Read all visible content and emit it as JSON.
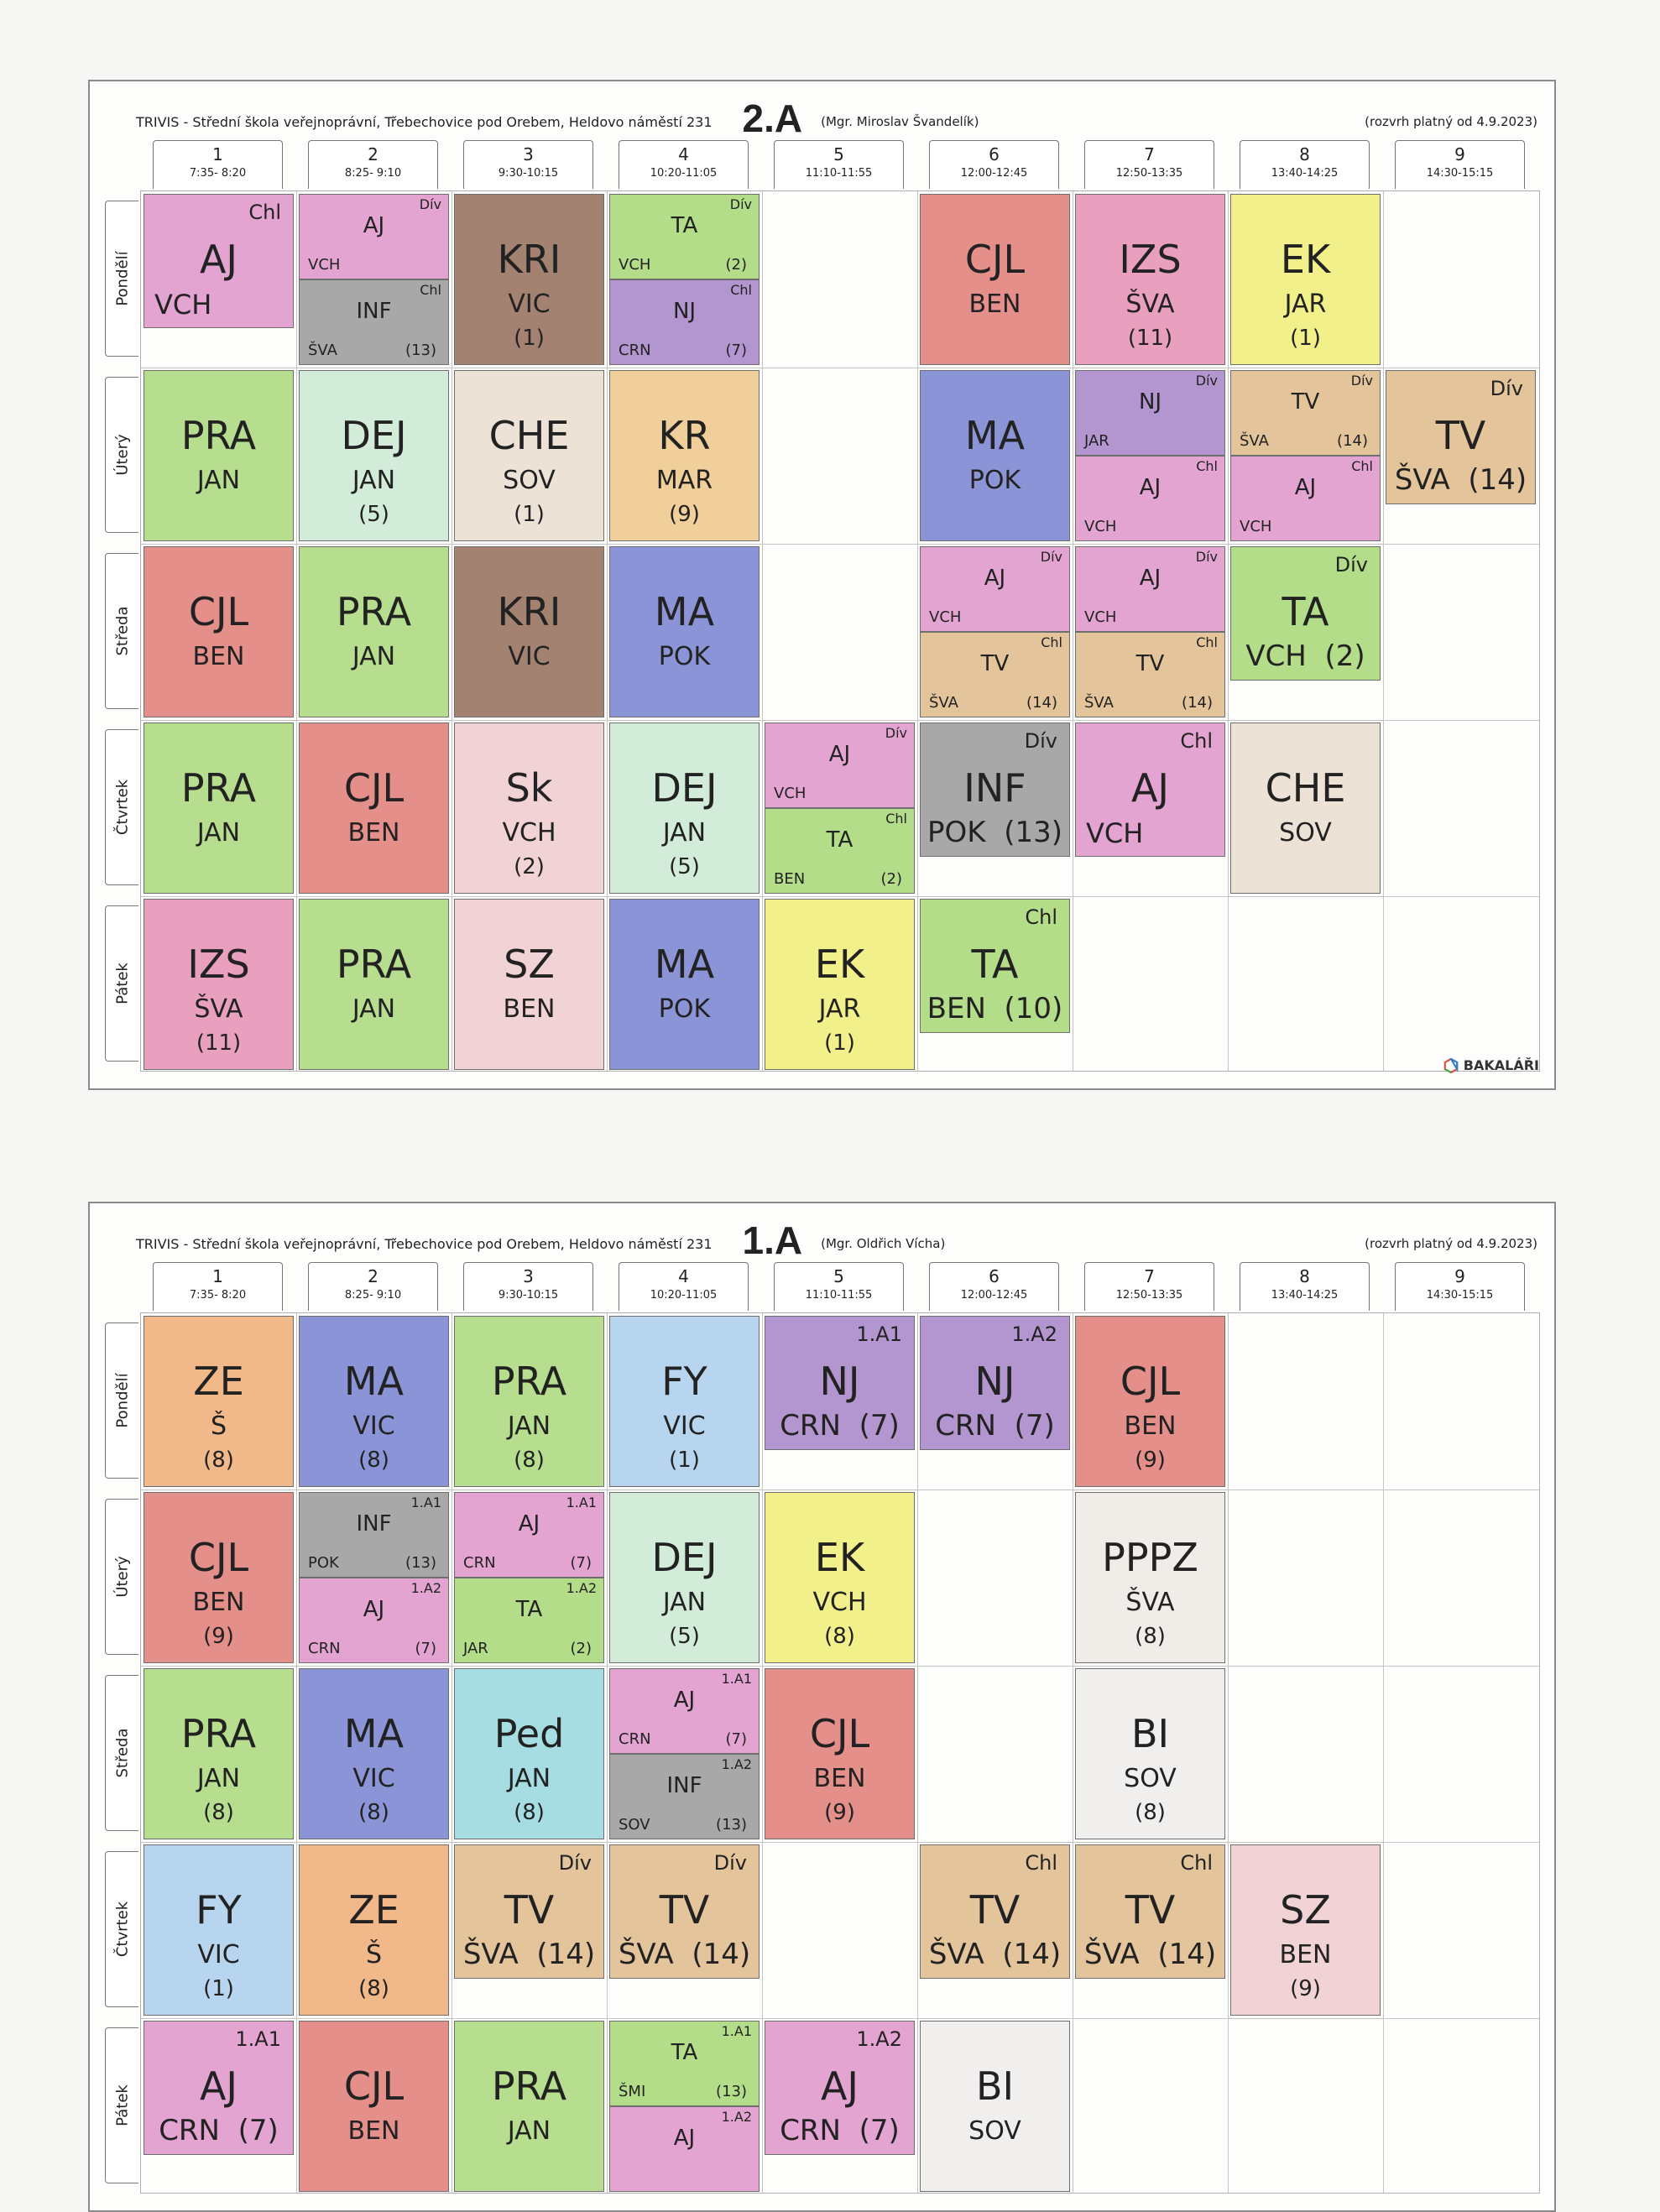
{
  "days": [
    "Pondělí",
    "Úterý",
    "Středa",
    "Čtvrtek",
    "Pátek"
  ],
  "periods": [
    {
      "n": "1",
      "t": "7:35- 8:20"
    },
    {
      "n": "2",
      "t": "8:25- 9:10"
    },
    {
      "n": "3",
      "t": "9:30-10:15"
    },
    {
      "n": "4",
      "t": "10:20-11:05"
    },
    {
      "n": "5",
      "t": "11:10-11:55"
    },
    {
      "n": "6",
      "t": "12:00-12:45"
    },
    {
      "n": "7",
      "t": "12:50-13:35"
    },
    {
      "n": "8",
      "t": "13:40-14:25"
    },
    {
      "n": "9",
      "t": "14:30-15:15"
    }
  ],
  "timetables": [
    {
      "school": "TRIVIS - Střední škola veřejnoprávní, Třebechovice pod Orebem, Heldovo náměstí 231",
      "klass": "2.A",
      "teacher": "(Mgr. Miroslav Švandelík)",
      "valid": "(rozvrh platný od 4.9.2023)",
      "logo": "BAKALÁŘI",
      "lessons": [
        {
          "d": 0,
          "p": 0,
          "slot": "full",
          "s": "AJ",
          "t": "VCH",
          "g": "Chl",
          "c": "#e4a4d2",
          "mode": "wide",
          "lower": "short"
        },
        {
          "d": 0,
          "p": 1,
          "slot": "top",
          "s": "AJ",
          "t": "VCH",
          "g": "Dív",
          "c": "#e4a4d2"
        },
        {
          "d": 0,
          "p": 1,
          "slot": "bot",
          "s": "INF",
          "t": "ŠVA",
          "r": "(13)",
          "g": "Chl",
          "c": "#a8a8a8"
        },
        {
          "d": 0,
          "p": 2,
          "slot": "full",
          "s": "KRI",
          "t": "VIC",
          "r": "(1)",
          "c": "#a38272"
        },
        {
          "d": 0,
          "p": 3,
          "slot": "top",
          "s": "TA",
          "t": "VCH",
          "r": "(2)",
          "g": "Dív",
          "c": "#b4dd8a"
        },
        {
          "d": 0,
          "p": 3,
          "slot": "bot",
          "s": "NJ",
          "t": "CRN",
          "r": "(7)",
          "g": "Chl",
          "c": "#b395cf"
        },
        {
          "d": 0,
          "p": 5,
          "slot": "full",
          "s": "CJL",
          "t": "BEN",
          "c": "#e58f8a"
        },
        {
          "d": 0,
          "p": 6,
          "slot": "full",
          "s": "IZS",
          "t": "ŠVA",
          "r": "(11)",
          "c": "#e9a0bf"
        },
        {
          "d": 0,
          "p": 7,
          "slot": "full",
          "s": "EK",
          "t": "JAR",
          "r": "(1)",
          "c": "#f1f08a"
        },
        {
          "d": 1,
          "p": 0,
          "slot": "full",
          "s": "PRA",
          "t": "JAN",
          "c": "#b7dd8f"
        },
        {
          "d": 1,
          "p": 1,
          "slot": "full",
          "s": "DEJ",
          "t": "JAN",
          "r": "(5)",
          "c": "#d3ecda"
        },
        {
          "d": 1,
          "p": 2,
          "slot": "full",
          "s": "CHE",
          "t": "SOV",
          "r": "(1)",
          "c": "#ece3d6"
        },
        {
          "d": 1,
          "p": 3,
          "slot": "full",
          "s": "KR",
          "t": "MAR",
          "r": "(9)",
          "c": "#f1cf9b"
        },
        {
          "d": 1,
          "p": 5,
          "slot": "full",
          "s": "MA",
          "t": "POK",
          "c": "#8a94d6"
        },
        {
          "d": 1,
          "p": 6,
          "slot": "top",
          "s": "NJ",
          "t": "JAR",
          "g": "Dív",
          "c": "#b395cf"
        },
        {
          "d": 1,
          "p": 6,
          "slot": "bot",
          "s": "AJ",
          "t": "VCH",
          "g": "Chl",
          "c": "#e4a4d2"
        },
        {
          "d": 1,
          "p": 7,
          "slot": "top",
          "s": "TV",
          "t": "ŠVA",
          "r": "(14)",
          "g": "Dív",
          "c": "#e3c49b"
        },
        {
          "d": 1,
          "p": 7,
          "slot": "bot",
          "s": "AJ",
          "t": "VCH",
          "g": "Chl",
          "c": "#e4a4d2"
        },
        {
          "d": 1,
          "p": 8,
          "slot": "full",
          "s": "TV",
          "t": "ŠVA",
          "r": "(14)",
          "g": "Dív",
          "c": "#e3c49b",
          "mode": "wide",
          "lower": "short"
        },
        {
          "d": 2,
          "p": 0,
          "slot": "full",
          "s": "CJL",
          "t": "BEN",
          "c": "#e58f8a"
        },
        {
          "d": 2,
          "p": 1,
          "slot": "full",
          "s": "PRA",
          "t": "JAN",
          "c": "#b7dd8f"
        },
        {
          "d": 2,
          "p": 2,
          "slot": "full",
          "s": "KRI",
          "t": "VIC",
          "c": "#a38272"
        },
        {
          "d": 2,
          "p": 3,
          "slot": "full",
          "s": "MA",
          "t": "POK",
          "c": "#8a94d6"
        },
        {
          "d": 2,
          "p": 5,
          "slot": "top",
          "s": "AJ",
          "t": "VCH",
          "g": "Dív",
          "c": "#e4a4d2"
        },
        {
          "d": 2,
          "p": 5,
          "slot": "bot",
          "s": "TV",
          "t": "ŠVA",
          "r": "(14)",
          "g": "Chl",
          "c": "#e3c49b"
        },
        {
          "d": 2,
          "p": 6,
          "slot": "top",
          "s": "AJ",
          "t": "VCH",
          "g": "Dív",
          "c": "#e4a4d2"
        },
        {
          "d": 2,
          "p": 6,
          "slot": "bot",
          "s": "TV",
          "t": "ŠVA",
          "r": "(14)",
          "g": "Chl",
          "c": "#e3c49b"
        },
        {
          "d": 2,
          "p": 7,
          "slot": "full",
          "s": "TA",
          "t": "VCH",
          "r": "(2)",
          "g": "Dív",
          "c": "#b4dd8a",
          "mode": "wide",
          "lower": "short"
        },
        {
          "d": 3,
          "p": 0,
          "slot": "full",
          "s": "PRA",
          "t": "JAN",
          "c": "#b7dd8f"
        },
        {
          "d": 3,
          "p": 1,
          "slot": "full",
          "s": "CJL",
          "t": "BEN",
          "c": "#e58f8a"
        },
        {
          "d": 3,
          "p": 2,
          "slot": "full",
          "s": "Sk",
          "t": "VCH",
          "r": "(2)",
          "c": "#f1d2d5"
        },
        {
          "d": 3,
          "p": 3,
          "slot": "full",
          "s": "DEJ",
          "t": "JAN",
          "r": "(5)",
          "c": "#d3ecda"
        },
        {
          "d": 3,
          "p": 4,
          "slot": "top",
          "s": "AJ",
          "t": "VCH",
          "g": "Dív",
          "c": "#e4a4d2"
        },
        {
          "d": 3,
          "p": 4,
          "slot": "bot",
          "s": "TA",
          "t": "BEN",
          "r": "(2)",
          "g": "Chl",
          "c": "#b4dd8a"
        },
        {
          "d": 3,
          "p": 5,
          "slot": "full",
          "s": "INF",
          "t": "POK",
          "r": "(13)",
          "g": "Dív",
          "c": "#a8a8a8",
          "mode": "wide",
          "lower": "short"
        },
        {
          "d": 3,
          "p": 6,
          "slot": "full",
          "s": "AJ",
          "t": "VCH",
          "g": "Chl",
          "c": "#e4a4d2",
          "mode": "wide",
          "lower": "short"
        },
        {
          "d": 3,
          "p": 7,
          "slot": "full",
          "s": "CHE",
          "t": "SOV",
          "c": "#ece3d6"
        },
        {
          "d": 4,
          "p": 0,
          "slot": "full",
          "s": "IZS",
          "t": "ŠVA",
          "r": "(11)",
          "c": "#e9a0bf"
        },
        {
          "d": 4,
          "p": 1,
          "slot": "full",
          "s": "PRA",
          "t": "JAN",
          "c": "#b7dd8f"
        },
        {
          "d": 4,
          "p": 2,
          "slot": "full",
          "s": "SZ",
          "t": "BEN",
          "c": "#f1d2d5"
        },
        {
          "d": 4,
          "p": 3,
          "slot": "full",
          "s": "MA",
          "t": "POK",
          "c": "#8a94d6"
        },
        {
          "d": 4,
          "p": 4,
          "slot": "full",
          "s": "EK",
          "t": "JAR",
          "r": "(1)",
          "c": "#f1f08a"
        },
        {
          "d": 4,
          "p": 5,
          "slot": "full",
          "s": "TA",
          "t": "BEN",
          "r": "(10)",
          "g": "Chl",
          "c": "#b4dd8a",
          "mode": "wide",
          "lower": "short"
        }
      ]
    },
    {
      "school": "TRIVIS - Střední škola veřejnoprávní, Třebechovice pod Orebem, Heldovo náměstí 231",
      "klass": "1.A",
      "teacher": "(Mgr. Oldřich Vícha)",
      "valid": "(rozvrh platný od 4.9.2023)",
      "logo": "",
      "lessons": [
        {
          "d": 0,
          "p": 0,
          "slot": "full",
          "s": "ZE",
          "t": "Š",
          "r": "(8)",
          "c": "#f1b98a"
        },
        {
          "d": 0,
          "p": 1,
          "slot": "full",
          "s": "MA",
          "t": "VIC",
          "r": "(8)",
          "c": "#8a94d6"
        },
        {
          "d": 0,
          "p": 2,
          "slot": "full",
          "s": "PRA",
          "t": "JAN",
          "r": "(8)",
          "c": "#b7dd8f"
        },
        {
          "d": 0,
          "p": 3,
          "slot": "full",
          "s": "FY",
          "t": "VIC",
          "r": "(1)",
          "c": "#b7d5ee"
        },
        {
          "d": 0,
          "p": 4,
          "slot": "full",
          "s": "NJ",
          "t": "CRN",
          "r": "(7)",
          "g": "1.A1",
          "c": "#b395cf",
          "mode": "wide",
          "lower": "short"
        },
        {
          "d": 0,
          "p": 5,
          "slot": "full",
          "s": "NJ",
          "t": "CRN",
          "r": "(7)",
          "g": "1.A2",
          "c": "#b395cf",
          "mode": "wide",
          "lower": "short"
        },
        {
          "d": 0,
          "p": 6,
          "slot": "full",
          "s": "CJL",
          "t": "BEN",
          "r": "(9)",
          "c": "#e58f8a"
        },
        {
          "d": 1,
          "p": 0,
          "slot": "full",
          "s": "CJL",
          "t": "BEN",
          "r": "(9)",
          "c": "#e58f8a"
        },
        {
          "d": 1,
          "p": 1,
          "slot": "top",
          "s": "INF",
          "t": "POK",
          "r": "(13)",
          "g": "1.A1",
          "c": "#a8a8a8"
        },
        {
          "d": 1,
          "p": 1,
          "slot": "bot",
          "s": "AJ",
          "t": "CRN",
          "r": "(7)",
          "g": "1.A2",
          "c": "#e4a4d2"
        },
        {
          "d": 1,
          "p": 2,
          "slot": "top",
          "s": "AJ",
          "t": "CRN",
          "r": "(7)",
          "g": "1.A1",
          "c": "#e4a4d2"
        },
        {
          "d": 1,
          "p": 2,
          "slot": "bot",
          "s": "TA",
          "t": "JAR",
          "r": "(2)",
          "g": "1.A2",
          "c": "#b4dd8a"
        },
        {
          "d": 1,
          "p": 3,
          "slot": "full",
          "s": "DEJ",
          "t": "JAN",
          "r": "(5)",
          "c": "#d3ecda"
        },
        {
          "d": 1,
          "p": 4,
          "slot": "full",
          "s": "EK",
          "t": "VCH",
          "r": "(8)",
          "c": "#f1f08a"
        },
        {
          "d": 1,
          "p": 6,
          "slot": "full",
          "s": "PPPZ",
          "t": "ŠVA",
          "r": "(8)",
          "c": "#f0ece8"
        },
        {
          "d": 2,
          "p": 0,
          "slot": "full",
          "s": "PRA",
          "t": "JAN",
          "r": "(8)",
          "c": "#b7dd8f"
        },
        {
          "d": 2,
          "p": 1,
          "slot": "full",
          "s": "MA",
          "t": "VIC",
          "r": "(8)",
          "c": "#8a94d6"
        },
        {
          "d": 2,
          "p": 2,
          "slot": "full",
          "s": "Ped",
          "t": "JAN",
          "r": "(8)",
          "c": "#a6dde2"
        },
        {
          "d": 2,
          "p": 3,
          "slot": "top",
          "s": "AJ",
          "t": "CRN",
          "r": "(7)",
          "g": "1.A1",
          "c": "#e4a4d2"
        },
        {
          "d": 2,
          "p": 3,
          "slot": "bot",
          "s": "INF",
          "t": "SOV",
          "r": "(13)",
          "g": "1.A2",
          "c": "#a8a8a8"
        },
        {
          "d": 2,
          "p": 4,
          "slot": "full",
          "s": "CJL",
          "t": "BEN",
          "r": "(9)",
          "c": "#e58f8a"
        },
        {
          "d": 2,
          "p": 6,
          "slot": "full",
          "s": "BI",
          "t": "SOV",
          "r": "(8)",
          "c": "#f0efee"
        },
        {
          "d": 3,
          "p": 0,
          "slot": "full",
          "s": "FY",
          "t": "VIC",
          "r": "(1)",
          "c": "#b7d5ee"
        },
        {
          "d": 3,
          "p": 1,
          "slot": "full",
          "s": "ZE",
          "t": "Š",
          "r": "(8)",
          "c": "#f1b98a"
        },
        {
          "d": 3,
          "p": 2,
          "slot": "full",
          "s": "TV",
          "t": "ŠVA",
          "r": "(14)",
          "g": "Dív",
          "c": "#e3c49b",
          "mode": "wide",
          "lower": "short"
        },
        {
          "d": 3,
          "p": 3,
          "slot": "full",
          "s": "TV",
          "t": "ŠVA",
          "r": "(14)",
          "g": "Dív",
          "c": "#e3c49b",
          "mode": "wide",
          "lower": "short"
        },
        {
          "d": 3,
          "p": 5,
          "slot": "full",
          "s": "TV",
          "t": "ŠVA",
          "r": "(14)",
          "g": "Chl",
          "c": "#e3c49b",
          "mode": "wide",
          "lower": "short"
        },
        {
          "d": 3,
          "p": 6,
          "slot": "full",
          "s": "TV",
          "t": "ŠVA",
          "r": "(14)",
          "g": "Chl",
          "c": "#e3c49b",
          "mode": "wide",
          "lower": "short"
        },
        {
          "d": 3,
          "p": 7,
          "slot": "full",
          "s": "SZ",
          "t": "BEN",
          "r": "(9)",
          "c": "#f1d2d5"
        },
        {
          "d": 4,
          "p": 0,
          "slot": "full",
          "s": "AJ",
          "t": "CRN",
          "r": "(7)",
          "g": "1.A1",
          "c": "#e4a4d2",
          "mode": "wide",
          "lower": "short"
        },
        {
          "d": 4,
          "p": 1,
          "slot": "full",
          "s": "CJL",
          "t": "BEN",
          "c": "#e58f8a"
        },
        {
          "d": 4,
          "p": 2,
          "slot": "full",
          "s": "PRA",
          "t": "JAN",
          "c": "#b7dd8f"
        },
        {
          "d": 4,
          "p": 3,
          "slot": "top",
          "s": "TA",
          "t": "ŠMI",
          "r": "(13)",
          "g": "1.A1",
          "c": "#b4dd8a"
        },
        {
          "d": 4,
          "p": 3,
          "slot": "bot",
          "s": "AJ",
          "g": "1.A2",
          "c": "#e4a4d2"
        },
        {
          "d": 4,
          "p": 4,
          "slot": "full",
          "s": "AJ",
          "t": "CRN",
          "r": "(7)",
          "g": "1.A2",
          "c": "#e4a4d2",
          "mode": "wide",
          "lower": "short"
        },
        {
          "d": 4,
          "p": 5,
          "slot": "full",
          "s": "BI",
          "t": "SOV",
          "c": "#f0efee"
        }
      ]
    }
  ]
}
